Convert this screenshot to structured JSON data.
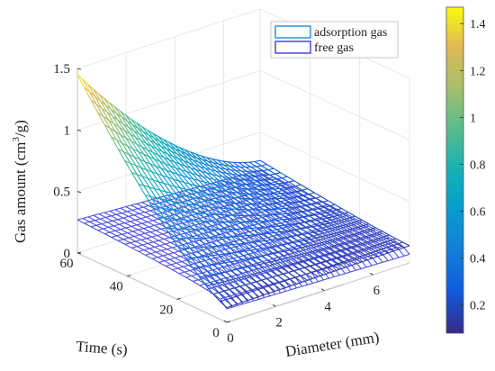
{
  "chart_data": {
    "type": "surface-mesh-3d",
    "title": "",
    "xlabel": "Diameter (mm)",
    "ylabel": "Time (s)",
    "zlabel_main": "Gas amount (cm",
    "zlabel_sup": "3",
    "zlabel_tail": "/g)",
    "xlim": [
      0,
      7.5
    ],
    "ylim": [
      0,
      60
    ],
    "zlim": [
      0,
      1.5
    ],
    "x_ticks": [
      {
        "v": 0,
        "label": "0"
      },
      {
        "v": 2,
        "label": "2"
      },
      {
        "v": 4,
        "label": "4"
      },
      {
        "v": 6,
        "label": "6"
      }
    ],
    "y_ticks": [
      {
        "v": 0,
        "label": "0"
      },
      {
        "v": 20,
        "label": "20"
      },
      {
        "v": 40,
        "label": "40"
      },
      {
        "v": 60,
        "label": "60"
      }
    ],
    "z_ticks": [
      {
        "v": 0,
        "label": "0"
      },
      {
        "v": 0.5,
        "label": "0.5"
      },
      {
        "v": 1,
        "label": "1"
      },
      {
        "v": 1.5,
        "label": "1.5"
      }
    ],
    "grid": true,
    "colormap": "parula",
    "colorbar": {
      "range": [
        0.08,
        1.47
      ],
      "ticks": [
        {
          "v": 0.2,
          "label": "0.2"
        },
        {
          "v": 0.4,
          "label": "0.4"
        },
        {
          "v": 0.6,
          "label": "0.6"
        },
        {
          "v": 0.8,
          "label": "0.8"
        },
        {
          "v": 1,
          "label": "1"
        },
        {
          "v": 1.2,
          "label": "1.2"
        },
        {
          "v": 1.4,
          "label": "1.4"
        }
      ]
    },
    "legend": {
      "placement": "top-right",
      "entries": [
        {
          "label": "adsorption gas",
          "color": "#3a9bdc"
        },
        {
          "label": "free gas",
          "color": "#5252e0"
        }
      ]
    },
    "series": [
      {
        "name": "adsorption gas",
        "style": "colormapped mesh",
        "corner_values": {
          "x0_y60": 1.45,
          "x7.5_y60": 0.27,
          "x0_y0": 0.12,
          "x7.5_y0": 0.14
        }
      },
      {
        "name": "free gas",
        "style": "blue mesh",
        "color": "#5050e6",
        "corner_values": {
          "x0_y60": 0.27,
          "x7.5_y60": 0.19,
          "x0_y0": 0.11,
          "x7.5_y0": 0.07
        }
      }
    ]
  }
}
